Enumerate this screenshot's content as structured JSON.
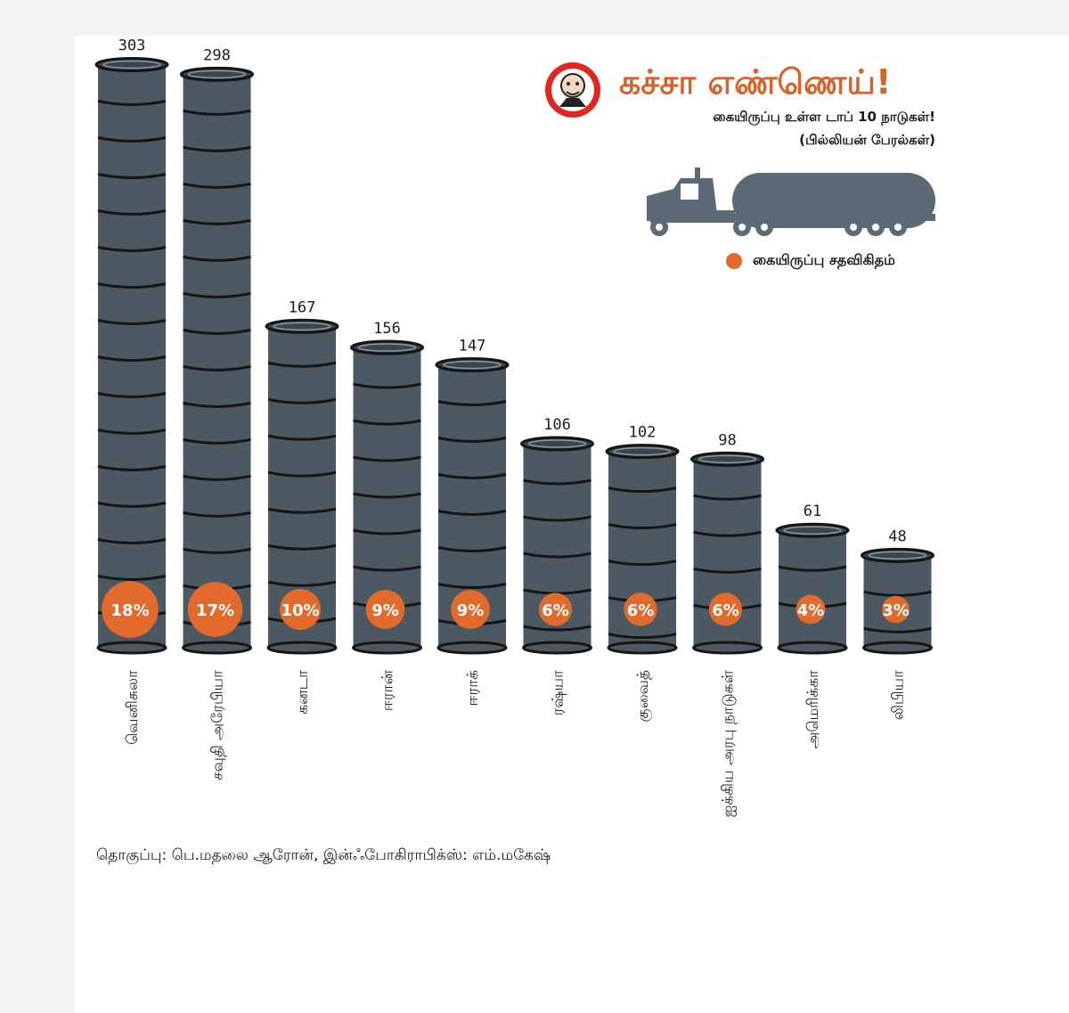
{
  "chart_data": {
    "type": "bar",
    "title": "கச்சா எண்ணெய்!",
    "subtitle": "கையிருப்பு உள்ள டாப் 10 நாடுகள்!",
    "unit": "(பில்லியன் பேரல்கள்)",
    "categories": [
      "வெனிசுலா",
      "சவுதி அரேபியா",
      "கனடா",
      "ஈரான்",
      "ஈராக்",
      "ரஷ்யா",
      "குவைத்",
      "ஐக்கிய அரபு நாடுகள்",
      "அமெரிக்கா",
      "லிபியா"
    ],
    "values": [
      303,
      298,
      167,
      156,
      147,
      106,
      102,
      98,
      61,
      48
    ],
    "value_labels": [
      "303",
      "298",
      "167",
      "156",
      "147",
      "106",
      "102",
      "98",
      "61",
      "48"
    ],
    "share_percent": [
      18,
      17,
      10,
      9,
      9,
      6,
      6,
      6,
      4,
      3
    ],
    "share_labels": [
      "18%",
      "17%",
      "10%",
      "9%",
      "9%",
      "6%",
      "6%",
      "6%",
      "4%",
      "3%"
    ],
    "legend": [
      {
        "name": "கையிருப்பு சதவிகிதம்",
        "color": "#e26a2c"
      }
    ],
    "colors": {
      "barrel": "#4d5962",
      "barrel_ring": "#151515",
      "dot": "#e26a2c",
      "truck": "#5b6a76",
      "title": "#d9612a"
    }
  },
  "credit": "தொகுப்பு: பெ.மதலை ஆரோன், இன்ஃபோகிராபிக்ஸ்: எம்.மகேஷ்",
  "icons": {
    "logo": "cartoon-face-logo-icon",
    "truck": "tanker-truck-icon"
  }
}
